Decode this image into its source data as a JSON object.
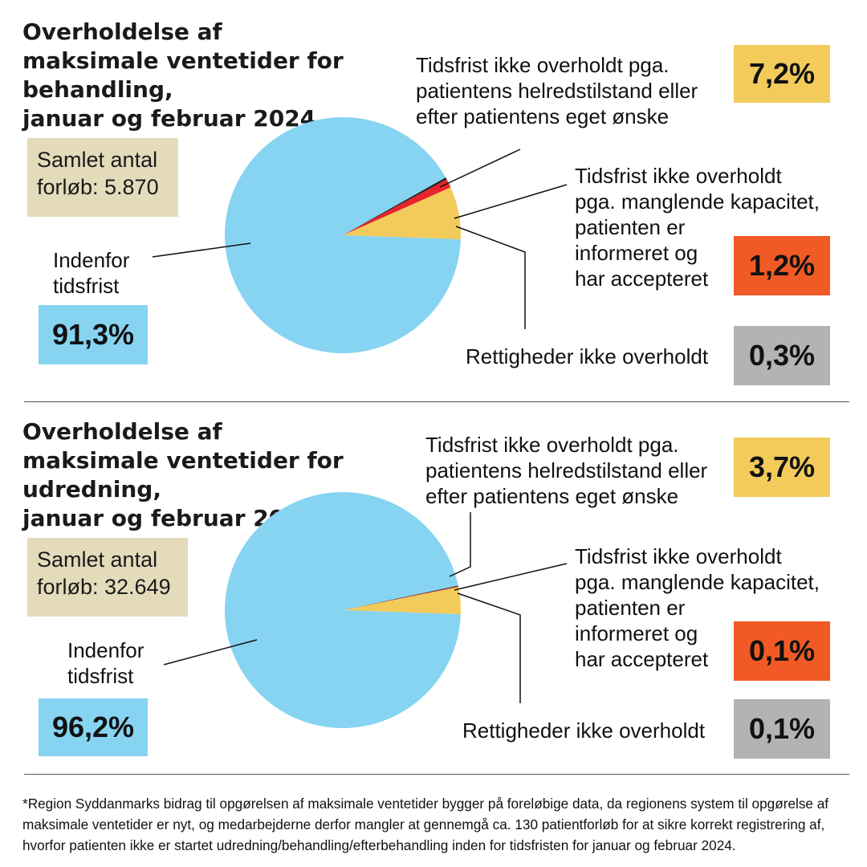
{
  "colors": {
    "within": "#86d4f2",
    "patient_reason": "#f2cb5b",
    "capacity": "#f15a24",
    "capacity_slice": "#e8232a",
    "rights": "#b3b3b3",
    "rights_slice": "#222222",
    "total_box": "#e4dbbb"
  },
  "top": {
    "title_prefix": "Overholdelse af maksimale ventetider for ",
    "title_strong": "behandling",
    "title_suffix": ",",
    "title_line3": "januar og februar 2024",
    "total_label_1": "Samlet antal",
    "total_label_2": "forløb: 5.870",
    "within_label_1": "Indenfor",
    "within_label_2": "tidsfrist",
    "within_value": "91,3%",
    "patient_label_1": "Tidsfrist ikke overholdt pga.",
    "patient_label_2": "patientens helredstilstand eller",
    "patient_label_3": "efter patientens eget ønske",
    "patient_value": "7,2%",
    "capacity_label_1": "Tidsfrist ikke overholdt",
    "capacity_label_2": "pga. manglende kapacitet,",
    "capacity_label_3": "patienten er",
    "capacity_label_4": "informeret og",
    "capacity_label_5": "har accepteret",
    "capacity_value": "1,2%",
    "rights_label": "Rettigheder ikke overholdt",
    "rights_value": "0,3%"
  },
  "bottom": {
    "title_prefix": "Overholdelse af maksimale ventetider for ",
    "title_strong": "udredning",
    "title_suffix": ",",
    "title_line3": "januar og februar 2024",
    "total_label_1": "Samlet antal",
    "total_label_2": "forløb: 32.649",
    "within_label_1": "Indenfor",
    "within_label_2": "tidsfrist",
    "within_value": "96,2%",
    "patient_label_1": "Tidsfrist ikke overholdt pga.",
    "patient_label_2": "patientens helredstilstand eller",
    "patient_label_3": "efter patientens eget ønske",
    "patient_value": "3,7%",
    "capacity_label_1": "Tidsfrist ikke overholdt",
    "capacity_label_2": "pga. manglende kapacitet,",
    "capacity_label_3": "patienten er",
    "capacity_label_4": "informeret og",
    "capacity_label_5": "har accepteret",
    "capacity_value": "0,1%",
    "rights_label": "Rettigheder ikke overholdt",
    "rights_value": "0,1%"
  },
  "footnote": "*Region Syddanmarks bidrag til opgørelsen af maksimale ventetider bygger på foreløbige data, da regionens system til opgørelse af maksimale ventetider er nyt, og medarbejderne derfor mangler at gennemgå ca. 130 patientforløb for at sikre korrekt registrering af, hvorfor patienten ikke er startet udredning/behandling/efterbehandling inden for tidsfristen for januar og februar 2024.",
  "chart_data": [
    {
      "type": "pie",
      "title": "Overholdelse af maksimale ventetider for behandling, januar og februar 2024",
      "categories": [
        "Indenfor tidsfrist",
        "Tidsfrist ikke overholdt pga. patientens helredstilstand eller efter patientens eget ønske",
        "Tidsfrist ikke overholdt pga. manglende kapacitet, patienten er informeret og har accepteret",
        "Rettigheder ikke overholdt"
      ],
      "values": [
        91.3,
        7.2,
        1.2,
        0.3
      ],
      "total": "5.870"
    },
    {
      "type": "pie",
      "title": "Overholdelse af maksimale ventetider for udredning, januar og februar 2024",
      "categories": [
        "Indenfor tidsfrist",
        "Tidsfrist ikke overholdt pga. patientens helredstilstand eller efter patientens eget ønske",
        "Tidsfrist ikke overholdt pga. manglende kapacitet, patienten er informeret og har accepteret",
        "Rettigheder ikke overholdt"
      ],
      "values": [
        96.2,
        3.7,
        0.1,
        0.1
      ],
      "total": "32.649"
    }
  ]
}
